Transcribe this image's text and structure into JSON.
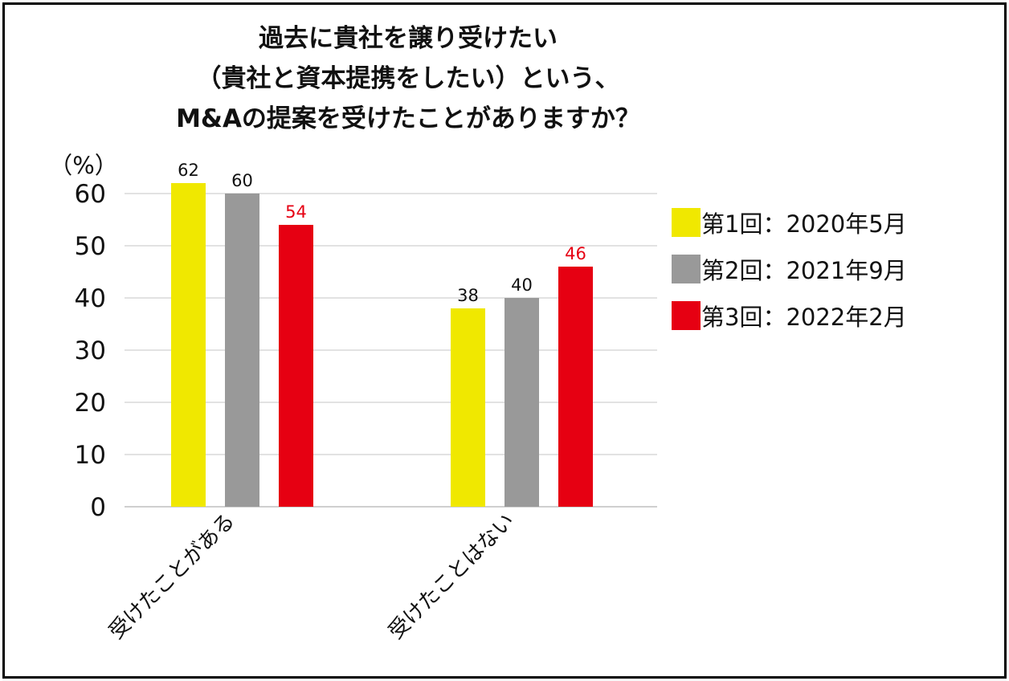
{
  "chart_data": {
    "type": "bar",
    "title_lines": [
      "過去に貴社を譲り受けたい",
      "（貴社と資本提携をしたい）という、",
      "M&Aの提案を受けたことがありますか？"
    ],
    "ylabel": "（%）",
    "xlabel": "",
    "ylim": [
      0,
      60
    ],
    "yticks": [
      0,
      10,
      20,
      30,
      40,
      50,
      60
    ],
    "grid": true,
    "legend_position": "right",
    "categories": [
      "受けたことがある",
      "受けたことはない"
    ],
    "series": [
      {
        "name": "第1回：2020年5月",
        "values": [
          62,
          38
        ],
        "color": "#F0E800",
        "label_color": "#111111"
      },
      {
        "name": "第2回：2021年9月",
        "values": [
          60,
          40
        ],
        "color": "#999999",
        "label_color": "#111111"
      },
      {
        "name": "第3回：2022年2月",
        "values": [
          54,
          46
        ],
        "color": "#E60012",
        "label_color": "#E60012"
      }
    ]
  }
}
